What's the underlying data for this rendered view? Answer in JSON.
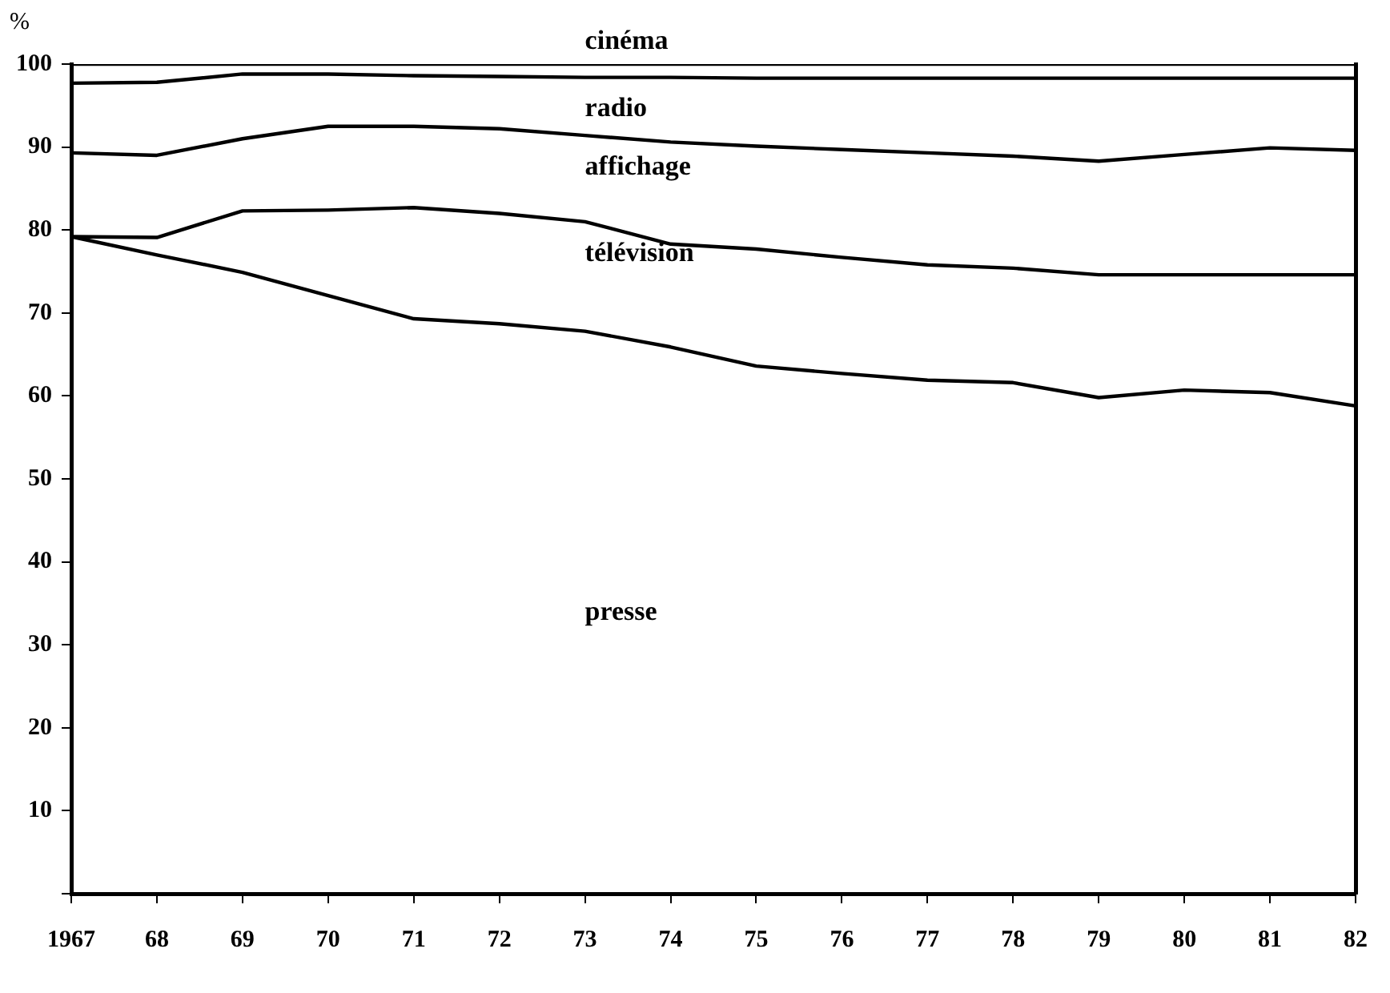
{
  "chart_data": {
    "type": "line",
    "ylabel": "%",
    "categories": [
      "1967",
      "68",
      "69",
      "70",
      "71",
      "72",
      "73",
      "74",
      "75",
      "76",
      "77",
      "78",
      "79",
      "80",
      "81",
      "82"
    ],
    "series": [
      {
        "color": "#000000",
        "values": [
          79.2,
          77.0,
          74.9,
          72.1,
          69.3,
          68.7,
          67.8,
          65.9,
          63.6,
          62.7,
          61.9,
          61.6,
          59.8,
          60.7,
          60.4,
          58.8
        ]
      },
      {
        "color": "#000000",
        "values": [
          79.2,
          79.1,
          82.3,
          82.4,
          82.7,
          82.0,
          81.0,
          78.3,
          77.7,
          76.7,
          75.8,
          75.4,
          74.6,
          74.6,
          74.6,
          74.6
        ]
      },
      {
        "color": "#000000",
        "values": [
          89.3,
          89.0,
          91.0,
          92.5,
          92.5,
          92.2,
          91.4,
          90.6,
          90.1,
          89.7,
          89.3,
          88.9,
          88.3,
          89.1,
          89.9,
          89.6
        ]
      },
      {
        "color": "#000000",
        "values": [
          97.7,
          97.8,
          98.8,
          98.8,
          98.6,
          98.5,
          98.4,
          98.4,
          98.3,
          98.3,
          98.3,
          98.3,
          98.3,
          98.3,
          98.3,
          98.3
        ]
      },
      {
        "color": "#000000",
        "values": [
          100,
          100,
          100,
          100,
          100,
          100,
          100,
          100,
          100,
          100,
          100,
          100,
          100,
          100,
          100,
          100
        ]
      }
    ],
    "annotations": [
      "cinéma",
      "radio",
      "affichage",
      "télévision",
      "presse"
    ],
    "ylim": [
      0,
      100
    ],
    "yticks": [
      {
        "value": 0,
        "label": null
      },
      10,
      20,
      30,
      40,
      50,
      60,
      70,
      80,
      90,
      100
    ],
    "grid": false,
    "legend": false,
    "marker": "none",
    "line_style": "solid"
  }
}
